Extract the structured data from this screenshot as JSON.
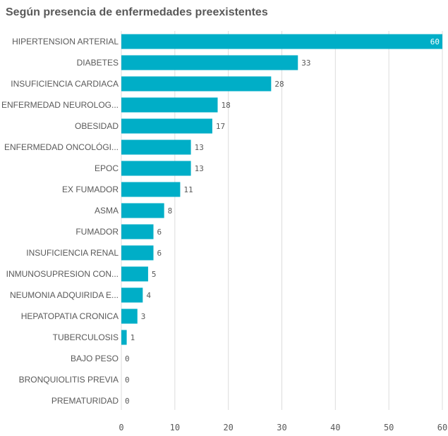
{
  "chart_data": {
    "type": "bar",
    "orientation": "horizontal",
    "title": "Según presencia de enfermedades preexistentes",
    "categories": [
      "HIPERTENSION ARTERIAL",
      "DIABETES",
      "INSUFICIENCIA CARDIACA",
      "ENFERMEDAD NEUROLOG...",
      "OBESIDAD",
      "ENFERMEDAD ONCOLÓGI...",
      "EPOC",
      "EX FUMADOR",
      "ASMA",
      "FUMADOR",
      "INSUFICIENCIA RENAL",
      "INMUNOSUPRESION CON...",
      "NEUMONIA ADQUIRIDA E...",
      "HEPATOPATIA CRONICA",
      "TUBERCULOSIS",
      "BAJO PESO",
      "BRONQUIOLITIS PREVIA",
      "PREMATURIDAD"
    ],
    "values": [
      60,
      33,
      28,
      18,
      17,
      13,
      13,
      11,
      8,
      6,
      6,
      5,
      4,
      3,
      1,
      0,
      0,
      0
    ],
    "xlim": [
      0,
      60
    ],
    "xticks": [
      "0",
      "10",
      "20",
      "30",
      "40",
      "50",
      "60"
    ],
    "grid": true,
    "bar_color": "#00aec7",
    "grid_color": "#dcdcdc",
    "text_color": "#595959"
  }
}
